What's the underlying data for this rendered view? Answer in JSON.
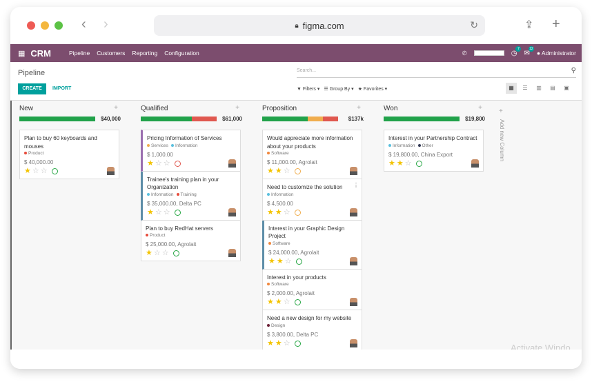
{
  "browser": {
    "url": "figma.com"
  },
  "navbar": {
    "brand": "CRM",
    "menu": [
      "Pipeline",
      "Customers",
      "Reporting",
      "Configuration"
    ],
    "activity_count": "7",
    "message_count": "12",
    "user": "Administrator"
  },
  "control": {
    "title": "Pipeline",
    "search_placeholder": "Search...",
    "create": "CREATE",
    "import": "IMPORT",
    "filters": "Filters",
    "group_by": "Group By",
    "favorites": "Favorites"
  },
  "columns": [
    {
      "name": "New",
      "total": "$40,000",
      "progress": [
        {
          "color": "#21a24a",
          "pct": 100
        }
      ],
      "cards": [
        {
          "title": "Plan to buy 60 keyboards and mouses",
          "tags": [
            {
              "label": "Product",
              "color": "#e74c3c"
            }
          ],
          "amount": "$ 40,000.00",
          "stars": 1,
          "activity": "#28a745"
        }
      ]
    },
    {
      "name": "Qualified",
      "total": "$61,000",
      "progress": [
        {
          "color": "#21a24a",
          "pct": 67
        },
        {
          "color": "#e0584f",
          "pct": 33
        }
      ],
      "cards": [
        {
          "title": "Pricing Information of Services",
          "tags": [
            {
              "label": "Services",
              "color": "#f0ad4e"
            },
            {
              "label": "Information",
              "color": "#5bc0de"
            }
          ],
          "amount": "$ 1,000.00",
          "stars": 1,
          "activity": "#e0584f",
          "accent": "#9b6fb0"
        },
        {
          "title": "Trainee's training plan in your Organization",
          "tags": [
            {
              "label": "Information",
              "color": "#5bc0de"
            },
            {
              "label": "Training",
              "color": "#e74c3c"
            }
          ],
          "amount": "$ 35,000.00, Delta PC",
          "stars": 1,
          "activity": "#28a745",
          "accent": "#5d8da8"
        },
        {
          "title": "Plan to buy RedHat servers",
          "tags": [
            {
              "label": "Product",
              "color": "#e74c3c"
            }
          ],
          "amount": "$ 25,000.00, Agrolait",
          "stars": 1,
          "activity": "#28a745"
        }
      ]
    },
    {
      "name": "Proposition",
      "total": "$137k",
      "progress": [
        {
          "color": "#21a24a",
          "pct": 60
        },
        {
          "color": "#f0ad4e",
          "pct": 20
        },
        {
          "color": "#e0584f",
          "pct": 20
        }
      ],
      "cards": [
        {
          "title": "Would appreciate more information about your products",
          "tags": [
            {
              "label": "Software",
              "color": "#f0883e"
            }
          ],
          "amount": "$ 11,000.00, Agrolait",
          "stars": 2,
          "activity": "#f0ad4e"
        },
        {
          "title": "Need to customize the solution",
          "tags": [
            {
              "label": "Information",
              "color": "#5bc0de"
            }
          ],
          "amount": "$ 4,500.00",
          "stars": 2,
          "activity": "#f0ad4e",
          "menu": "⋮"
        },
        {
          "title": "Interest in your Graphic Design Project",
          "tags": [
            {
              "label": "Software",
              "color": "#f0883e"
            }
          ],
          "amount": "$ 24,000.00, Agrolait",
          "stars": 2,
          "activity": "#28a745",
          "accent": "#5d8da8"
        },
        {
          "title": "Interest in your products",
          "tags": [
            {
              "label": "Software",
              "color": "#f0883e"
            }
          ],
          "amount": "$ 2,000.00, Agrolait",
          "stars": 2,
          "activity": "#28a745"
        },
        {
          "title": "Need a new design for my website",
          "tags": [
            {
              "label": "Design",
              "color": "#6b2137"
            }
          ],
          "amount": "$ 3,800.00, Delta PC",
          "stars": 2,
          "activity": "#28a745"
        }
      ]
    },
    {
      "name": "Won",
      "total": "$19,800",
      "progress": [
        {
          "color": "#21a24a",
          "pct": 100
        }
      ],
      "cards": [
        {
          "title": "Interest in your Partnership Contract",
          "tags": [
            {
              "label": "Information",
              "color": "#5bc0de"
            },
            {
              "label": "Other",
              "color": "#333a55"
            }
          ],
          "amount": "$ 19,800.00, China Export",
          "stars": 2,
          "activity": "#28a745"
        }
      ]
    }
  ],
  "add_column": "Add new Column",
  "watermark": "Activate Windo"
}
